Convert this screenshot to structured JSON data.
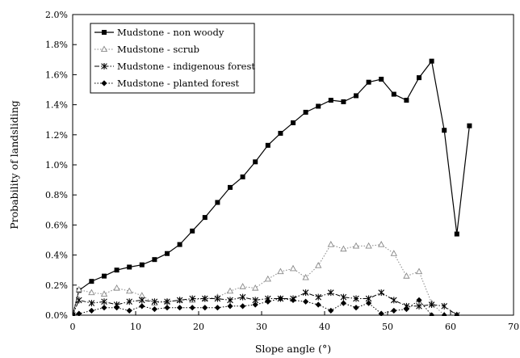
{
  "chart_data": {
    "type": "line",
    "xlabel": "Slope angle (°)",
    "ylabel": "Probability of landsliding",
    "xlim": [
      0,
      70
    ],
    "ylim": [
      0,
      0.02
    ],
    "x_ticks": [
      0,
      10,
      20,
      30,
      40,
      50,
      60,
      70
    ],
    "x_tick_labels": [
      "0",
      "10",
      "20",
      "30",
      "40",
      "50",
      "60",
      "70"
    ],
    "y_ticks": [
      0,
      0.002,
      0.004,
      0.006,
      0.008,
      0.01,
      0.012,
      0.014,
      0.016,
      0.018,
      0.02
    ],
    "y_tick_labels": [
      "0.0%",
      "0.2%",
      "0.4%",
      "0.6%",
      "0.8%",
      "1.0%",
      "1.2%",
      "1.4%",
      "1.6%",
      "1.8%",
      "2.0%"
    ],
    "grid": false,
    "legend_position": "top-left",
    "series": [
      {
        "name": "Mudstone - non woody",
        "marker": "square",
        "color": "#000000",
        "line": "solid",
        "points": [
          [
            0,
            0
          ],
          [
            1,
            0.00165
          ],
          [
            3,
            0.00225
          ],
          [
            5,
            0.0026
          ],
          [
            7,
            0.003
          ],
          [
            9,
            0.0032
          ],
          [
            11,
            0.00335
          ],
          [
            13,
            0.0037
          ],
          [
            15,
            0.0041
          ],
          [
            17,
            0.0047
          ],
          [
            19,
            0.0056
          ],
          [
            21,
            0.0065
          ],
          [
            23,
            0.0075
          ],
          [
            25,
            0.0085
          ],
          [
            27,
            0.0092
          ],
          [
            29,
            0.0102
          ],
          [
            31,
            0.0113
          ],
          [
            33,
            0.0121
          ],
          [
            35,
            0.0128
          ],
          [
            37,
            0.0135
          ],
          [
            39,
            0.0139
          ],
          [
            41,
            0.0143
          ],
          [
            43,
            0.0142
          ],
          [
            45,
            0.0146
          ],
          [
            47,
            0.0155
          ],
          [
            49,
            0.0157
          ],
          [
            51,
            0.0147
          ],
          [
            53,
            0.0143
          ],
          [
            55,
            0.0158
          ],
          [
            57,
            0.0169
          ],
          [
            59,
            0.0123
          ],
          [
            61,
            0.0054
          ],
          [
            63,
            0.0126
          ]
        ]
      },
      {
        "name": "Mudstone - scrub",
        "marker": "triangle",
        "color": "#888888",
        "line": "dotted",
        "points": [
          [
            0,
            0
          ],
          [
            1,
            0.0017
          ],
          [
            3,
            0.0015
          ],
          [
            5,
            0.0014
          ],
          [
            7,
            0.0018
          ],
          [
            9,
            0.0016
          ],
          [
            11,
            0.0013
          ],
          [
            13,
            0.0008
          ],
          [
            15,
            0.0009
          ],
          [
            17,
            0.001
          ],
          [
            19,
            0.001
          ],
          [
            21,
            0.0011
          ],
          [
            23,
            0.0012
          ],
          [
            25,
            0.0016
          ],
          [
            27,
            0.0019
          ],
          [
            29,
            0.0018
          ],
          [
            31,
            0.0024
          ],
          [
            33,
            0.0029
          ],
          [
            35,
            0.0031
          ],
          [
            37,
            0.0025
          ],
          [
            39,
            0.0033
          ],
          [
            41,
            0.0047
          ],
          [
            43,
            0.0044
          ],
          [
            45,
            0.0046
          ],
          [
            47,
            0.0046
          ],
          [
            49,
            0.0047
          ],
          [
            51,
            0.0041
          ],
          [
            53,
            0.0026
          ],
          [
            55,
            0.0029
          ],
          [
            57,
            0.0008
          ],
          [
            59,
            0
          ],
          [
            61,
            0
          ]
        ]
      },
      {
        "name": "Mudstone - indigenous forest",
        "marker": "star",
        "color": "#000000",
        "line": "dash-dot",
        "points": [
          [
            0,
            0
          ],
          [
            1,
            0.001
          ],
          [
            3,
            0.0008
          ],
          [
            5,
            0.0009
          ],
          [
            7,
            0.0007
          ],
          [
            9,
            0.0009
          ],
          [
            11,
            0.001
          ],
          [
            13,
            0.0009
          ],
          [
            15,
            0.0009
          ],
          [
            17,
            0.001
          ],
          [
            19,
            0.0011
          ],
          [
            21,
            0.0011
          ],
          [
            23,
            0.0011
          ],
          [
            25,
            0.001
          ],
          [
            27,
            0.0012
          ],
          [
            29,
            0.001
          ],
          [
            31,
            0.0011
          ],
          [
            33,
            0.0011
          ],
          [
            35,
            0.0011
          ],
          [
            37,
            0.0015
          ],
          [
            39,
            0.0012
          ],
          [
            41,
            0.0015
          ],
          [
            43,
            0.0012
          ],
          [
            45,
            0.0011
          ],
          [
            47,
            0.0011
          ],
          [
            49,
            0.0015
          ],
          [
            51,
            0.001
          ],
          [
            53,
            0.0006
          ],
          [
            55,
            0.0006
          ],
          [
            57,
            0.0007
          ],
          [
            59,
            0.0006
          ],
          [
            61,
            0
          ]
        ]
      },
      {
        "name": "Mudstone - planted forest",
        "marker": "diamond",
        "color": "#000000",
        "line": "dotted",
        "points": [
          [
            0,
            0
          ],
          [
            1,
            0.0001
          ],
          [
            3,
            0.0003
          ],
          [
            5,
            0.0005
          ],
          [
            7,
            0.0005
          ],
          [
            9,
            0.0003
          ],
          [
            11,
            0.0006
          ],
          [
            13,
            0.0004
          ],
          [
            15,
            0.0005
          ],
          [
            17,
            0.0005
          ],
          [
            19,
            0.0005
          ],
          [
            21,
            0.0005
          ],
          [
            23,
            0.0005
          ],
          [
            25,
            0.0006
          ],
          [
            27,
            0.0006
          ],
          [
            29,
            0.0007
          ],
          [
            31,
            0.0009
          ],
          [
            33,
            0.0011
          ],
          [
            35,
            0.001
          ],
          [
            37,
            0.0009
          ],
          [
            39,
            0.0007
          ],
          [
            41,
            0.0003
          ],
          [
            43,
            0.0008
          ],
          [
            45,
            0.0005
          ],
          [
            47,
            0.0008
          ],
          [
            49,
            0.0001
          ],
          [
            51,
            0.0003
          ],
          [
            53,
            0.0004
          ],
          [
            55,
            0.001
          ],
          [
            57,
            0
          ],
          [
            59,
            0
          ],
          [
            61,
            0
          ]
        ]
      }
    ]
  }
}
